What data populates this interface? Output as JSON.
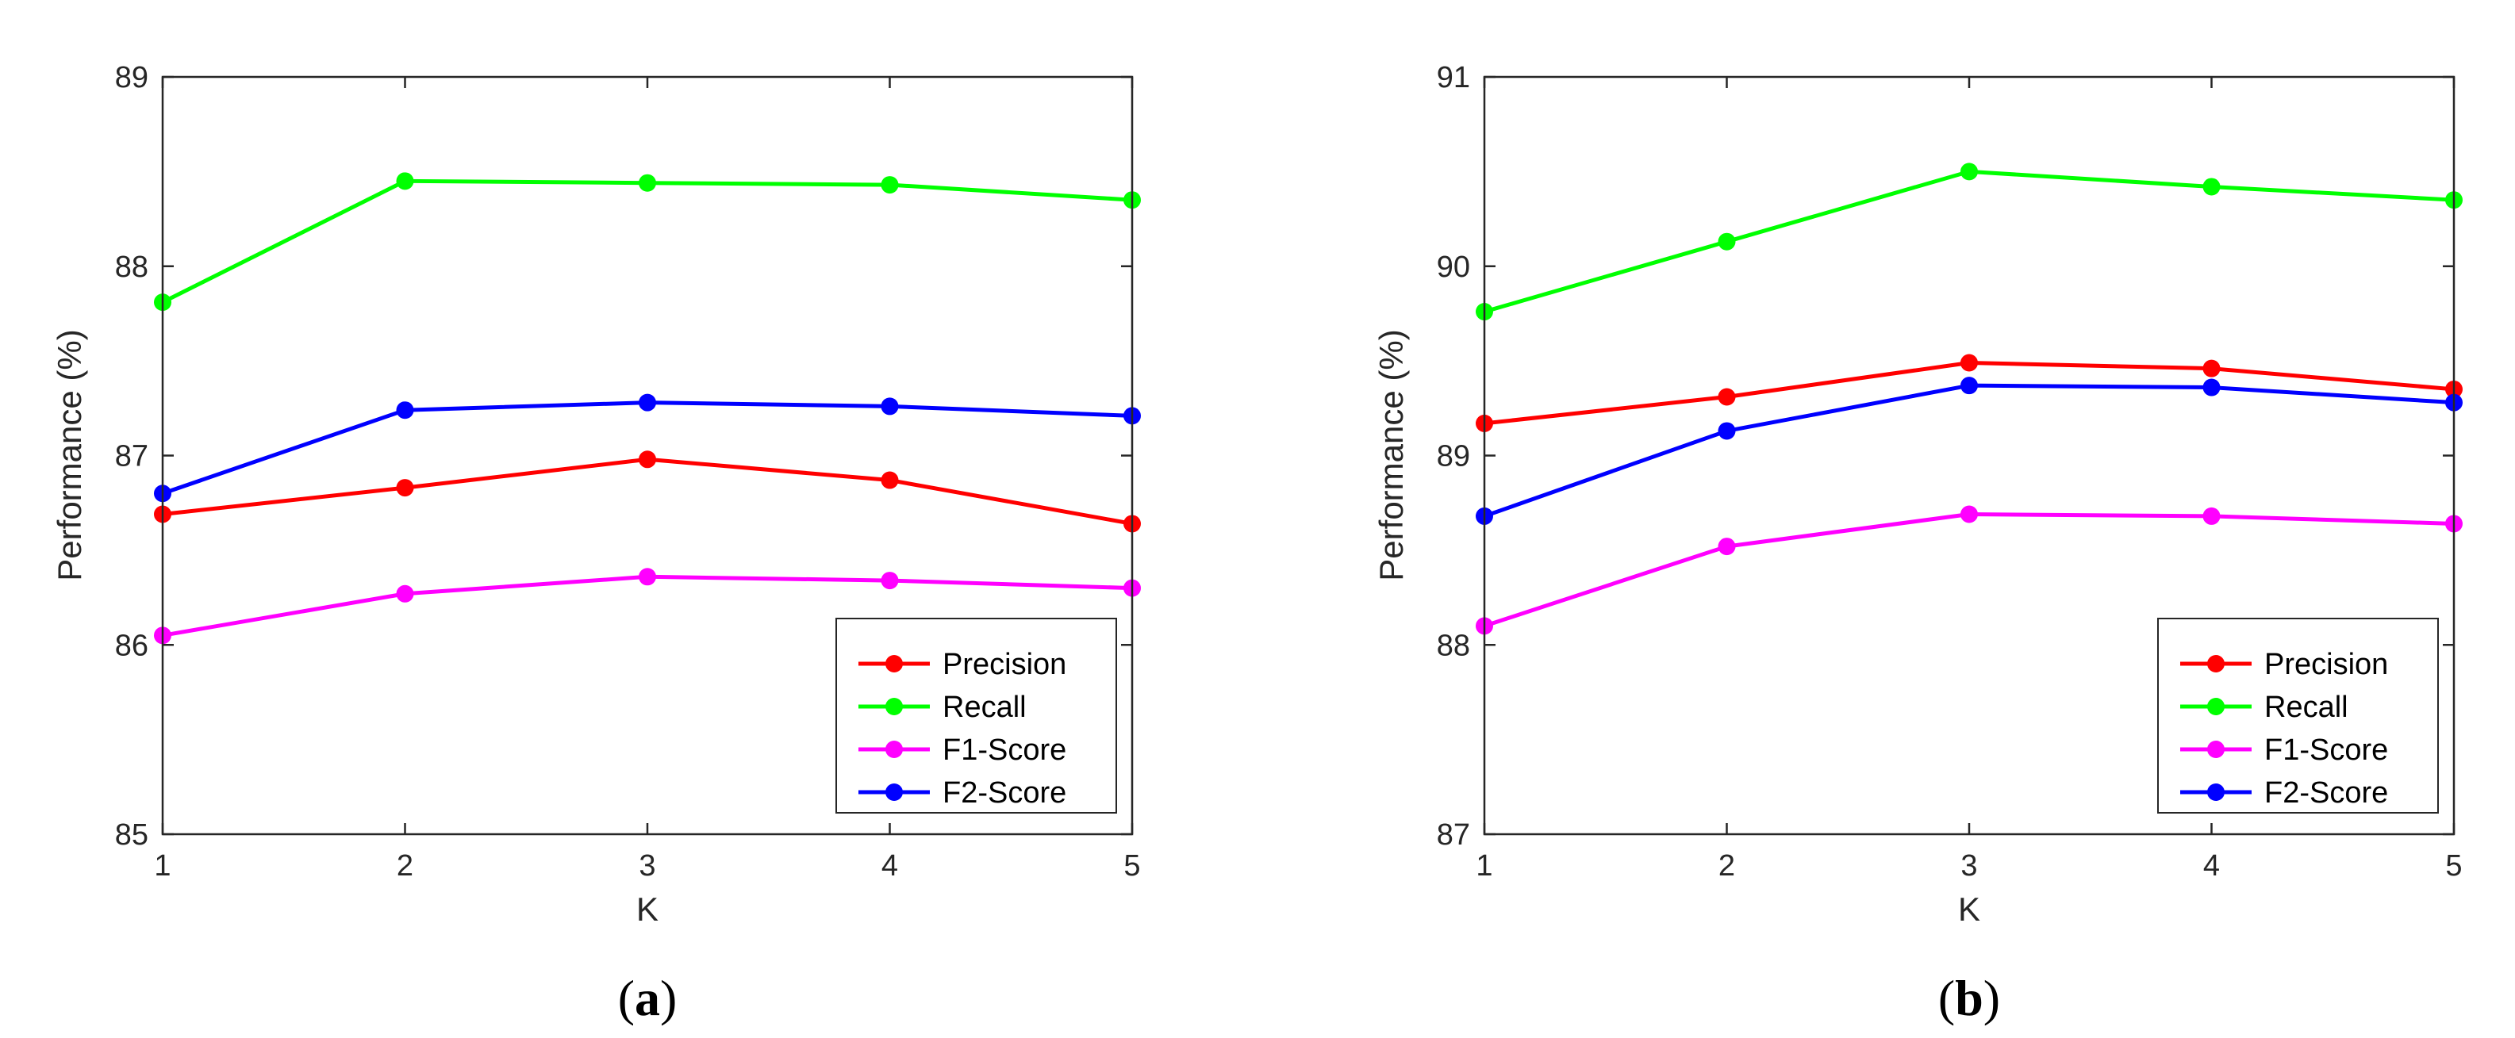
{
  "chart_data": [
    {
      "type": "line",
      "panel_label": {
        "open": "(",
        "letter": "a",
        "close": ")"
      },
      "x": [
        1,
        2,
        3,
        4,
        5
      ],
      "xlabel": "K",
      "ylabel": "Performance (%)",
      "xlim": [
        1,
        5
      ],
      "ylim": [
        85,
        89
      ],
      "xticks": [
        "1",
        "2",
        "3",
        "4",
        "5"
      ],
      "yticks": [
        "85",
        "86",
        "87",
        "88",
        "89"
      ],
      "grid": false,
      "legend_position": "bottom-right",
      "series": [
        {
          "name": "Precision",
          "color": "#ff0000",
          "values": [
            86.69,
            86.83,
            86.98,
            86.87,
            86.64
          ]
        },
        {
          "name": "Recall",
          "color": "#00ff00",
          "values": [
            87.81,
            88.45,
            88.44,
            88.43,
            88.35
          ]
        },
        {
          "name": "F1-Score",
          "color": "#ff00ff",
          "values": [
            86.05,
            86.27,
            86.36,
            86.34,
            86.3
          ]
        },
        {
          "name": "F2-Score",
          "color": "#0000ff",
          "values": [
            86.8,
            87.24,
            87.28,
            87.26,
            87.21
          ]
        }
      ]
    },
    {
      "type": "line",
      "panel_label": {
        "open": "(",
        "letter": "b",
        "close": ")"
      },
      "x": [
        1,
        2,
        3,
        4,
        5
      ],
      "xlabel": "K",
      "ylabel": "Performance (%)",
      "xlim": [
        1,
        5
      ],
      "ylim": [
        87,
        91
      ],
      "xticks": [
        "1",
        "2",
        "3",
        "4",
        "5"
      ],
      "yticks": [
        "87",
        "88",
        "89",
        "90",
        "91"
      ],
      "grid": false,
      "legend_position": "bottom-right",
      "series": [
        {
          "name": "Precision",
          "color": "#ff0000",
          "values": [
            89.17,
            89.31,
            89.49,
            89.46,
            89.35
          ]
        },
        {
          "name": "Recall",
          "color": "#00ff00",
          "values": [
            89.76,
            90.13,
            90.5,
            90.42,
            90.35
          ]
        },
        {
          "name": "F1-Score",
          "color": "#ff00ff",
          "values": [
            88.1,
            88.52,
            88.69,
            88.68,
            88.64
          ]
        },
        {
          "name": "F2-Score",
          "color": "#0000ff",
          "values": [
            88.68,
            89.13,
            89.37,
            89.36,
            89.28
          ]
        }
      ]
    }
  ]
}
